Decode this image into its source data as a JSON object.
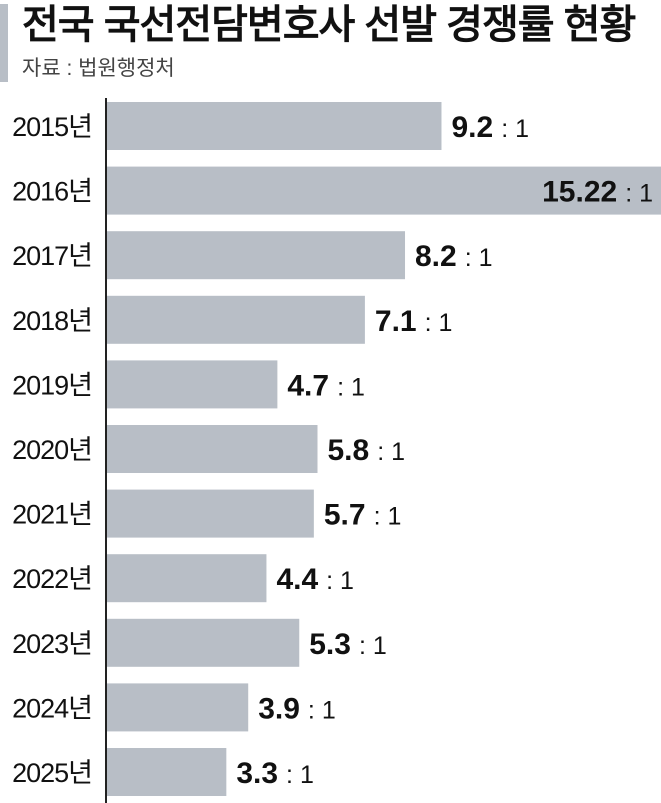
{
  "header": {
    "title": "전국 국선전담변호사 선발 경쟁률 현황",
    "source": "자료 : 법원행정처"
  },
  "colors": {
    "bar": "#b8bec6",
    "axis": "#222222",
    "accent": "#b8bec6"
  },
  "chart_data": {
    "type": "bar",
    "orientation": "horizontal",
    "categories": [
      "2015년",
      "2016년",
      "2017년",
      "2018년",
      "2019년",
      "2020년",
      "2021년",
      "2022년",
      "2023년",
      "2024년",
      "2025년"
    ],
    "values": [
      9.2,
      15.22,
      8.2,
      7.1,
      4.7,
      5.8,
      5.7,
      4.4,
      5.3,
      3.9,
      3.3
    ],
    "value_labels": [
      "9.2",
      "15.22",
      "8.2",
      "7.1",
      "4.7",
      "5.8",
      "5.7",
      "4.4",
      "5.3",
      "3.9",
      "3.3"
    ],
    "label_suffix": ": 1",
    "xlim": [
      0,
      15.22
    ],
    "grid": false
  }
}
